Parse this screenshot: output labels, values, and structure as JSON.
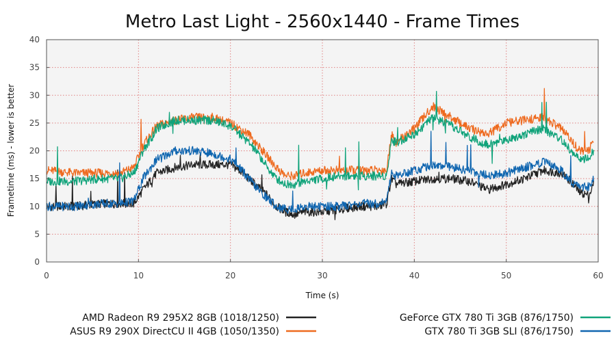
{
  "chart_data": {
    "type": "line",
    "title": "Metro Last Light - 2560x1440 - Frame Times",
    "xlabel": "Time (s)",
    "ylabel": "Frametime (ms) - lower is better",
    "xlim": [
      0,
      60
    ],
    "ylim": [
      0,
      40
    ],
    "xticks": [
      "0",
      "10",
      "20",
      "30",
      "40",
      "50",
      "60"
    ],
    "yticks": [
      "0",
      "5",
      "10",
      "15",
      "20",
      "25",
      "30",
      "35",
      "40"
    ],
    "grid": true,
    "legend_position": "bottom",
    "series": [
      {
        "name": "AMD Radeon R9 295X2 8GB (1018/1250)",
        "color": "#222222",
        "x": [
          0,
          3,
          6,
          8,
          9.5,
          10.5,
          12,
          14,
          16,
          18,
          20,
          21,
          22,
          23,
          24,
          25,
          26,
          27,
          28,
          30,
          32,
          34,
          36,
          37,
          37.5,
          38,
          40,
          42,
          44,
          46,
          48,
          50,
          52,
          54,
          56,
          57,
          58,
          59,
          59.5
        ],
        "values": [
          10,
          10,
          10.5,
          10.5,
          10.5,
          13,
          16,
          17,
          17.5,
          17.5,
          17.5,
          16.5,
          15,
          13.5,
          12,
          10,
          9,
          8.5,
          9,
          9,
          9.5,
          10,
          10,
          10.5,
          15,
          14,
          14.5,
          15,
          15,
          14.5,
          13,
          14,
          15,
          16.5,
          16,
          14.5,
          12.5,
          12,
          14
        ]
      },
      {
        "name": "ASUS R9 290X DirectCU II 4GB (1050/1350)",
        "color": "#ee6a1f",
        "x": [
          0,
          3,
          6,
          8,
          9.5,
          10.5,
          12,
          14,
          16,
          18,
          20,
          21,
          22,
          23,
          24,
          25,
          26,
          27,
          28,
          30,
          32,
          34,
          36,
          37,
          37.5,
          38,
          40,
          42,
          44,
          46,
          48,
          50,
          52,
          54,
          56,
          57,
          58,
          59,
          59.5
        ],
        "values": [
          16.5,
          16,
          16,
          16,
          17,
          21,
          24.5,
          25.5,
          26,
          26,
          25,
          24,
          23,
          21,
          19,
          17,
          15.5,
          15.5,
          16,
          16.5,
          16.5,
          16.5,
          16.5,
          16.5,
          23,
          21.5,
          24,
          28,
          26,
          24,
          23,
          25,
          25.5,
          26,
          24,
          22,
          20,
          20,
          22
        ]
      },
      {
        "name": "GeForce GTX 780 Ti 3GB (876/1750)",
        "color": "#10a37a",
        "x": [
          0,
          3,
          6,
          8,
          9.5,
          10.5,
          12,
          14,
          16,
          18,
          20,
          21,
          22,
          23,
          24,
          25,
          26,
          27,
          28,
          30,
          32,
          34,
          36,
          37,
          37.5,
          38,
          40,
          42,
          44,
          46,
          48,
          50,
          52,
          54,
          56,
          57,
          58,
          59,
          59.5
        ],
        "values": [
          14.5,
          14.5,
          15,
          15,
          16,
          20,
          24,
          25.5,
          25.5,
          25.5,
          24.5,
          23,
          21.5,
          19.5,
          17,
          15,
          14,
          14,
          14.5,
          15,
          15.5,
          15.5,
          15.5,
          15.5,
          22,
          21.5,
          23,
          26,
          24.5,
          22.5,
          21,
          22,
          23,
          24,
          22,
          20,
          18.5,
          18.5,
          20
        ]
      },
      {
        "name": "GTX 780 Ti 3GB SLI (876/1750)",
        "color": "#1066b0",
        "x": [
          0,
          3,
          6,
          8,
          9.5,
          10.5,
          12,
          14,
          16,
          18,
          20,
          21,
          22,
          23,
          24,
          25,
          26,
          27,
          28,
          30,
          32,
          34,
          36,
          37,
          37.5,
          38,
          40,
          42,
          44,
          46,
          48,
          50,
          52,
          54,
          56,
          57,
          58,
          59,
          59.5
        ],
        "values": [
          10,
          10,
          10.5,
          10.5,
          11,
          15,
          18.5,
          20,
          20,
          19.5,
          18.5,
          17,
          15,
          13,
          11.5,
          10,
          9.5,
          9.5,
          10,
          10,
          10,
          10.5,
          10.5,
          11,
          16,
          15.5,
          16.5,
          17.5,
          17,
          16.5,
          15.5,
          16,
          17,
          18,
          16.5,
          14.5,
          13.5,
          13.5,
          15
        ]
      }
    ]
  }
}
